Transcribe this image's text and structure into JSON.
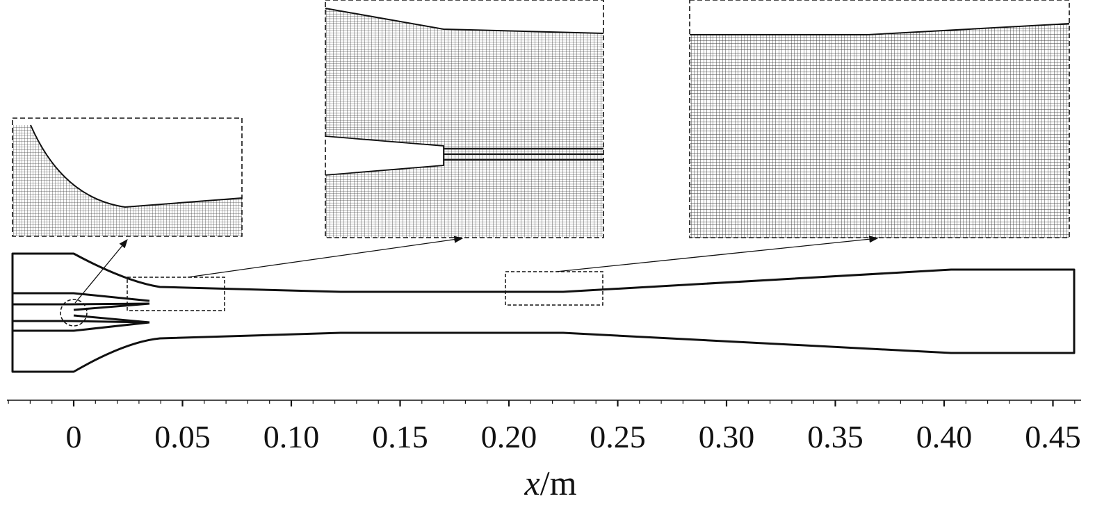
{
  "figure": {
    "x_axis": {
      "label_var": "x",
      "label_unit": "/m",
      "ticks": [
        "0",
        "0.05",
        "0.10",
        "0.15",
        "0.20",
        "0.25",
        "0.30",
        "0.35",
        "0.40",
        "0.45"
      ]
    },
    "insets": [
      {
        "name": "inset-nozzle-tip-mesh"
      },
      {
        "name": "inset-mixing-entry-mesh"
      },
      {
        "name": "inset-diffuser-entry-mesh"
      }
    ]
  }
}
